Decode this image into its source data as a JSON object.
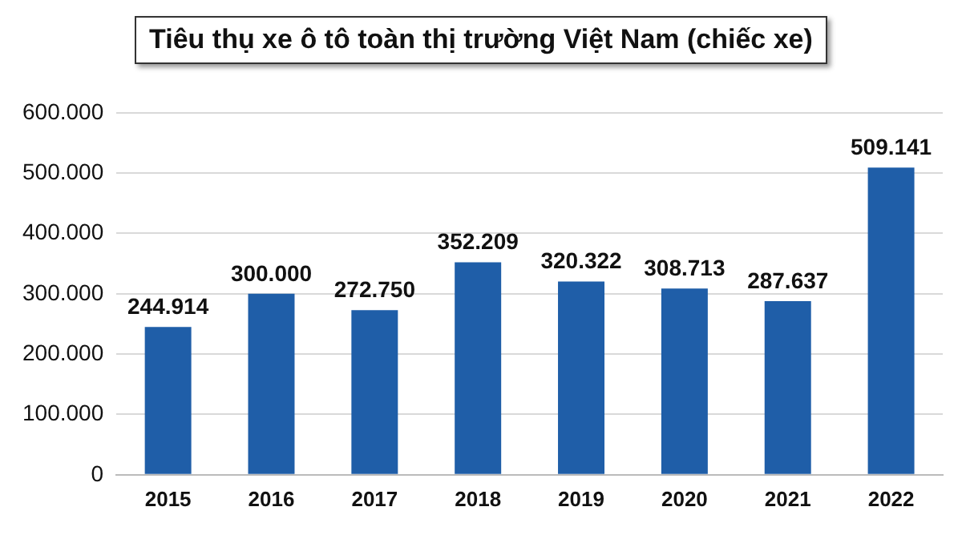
{
  "chart_data": {
    "type": "bar",
    "title": "Tiêu thụ xe ô tô toàn thị trường Việt Nam (chiếc xe)",
    "categories": [
      "2015",
      "2016",
      "2017",
      "2018",
      "2019",
      "2020",
      "2021",
      "2022"
    ],
    "values": [
      244914,
      300000,
      272750,
      352209,
      320322,
      308713,
      287637,
      509141
    ],
    "value_labels": [
      "244.914",
      "300.000",
      "272.750",
      "352.209",
      "320.322",
      "308.713",
      "287.637",
      "509.141"
    ],
    "color": "#1f5ea8",
    "ylim": [
      0,
      600000
    ],
    "yticks": [
      {
        "value": 0,
        "label": "0"
      },
      {
        "value": 100000,
        "label": "100.000"
      },
      {
        "value": 200000,
        "label": "200.000"
      },
      {
        "value": 300000,
        "label": "300.000"
      },
      {
        "value": 400000,
        "label": "400.000"
      },
      {
        "value": 500000,
        "label": "500.000"
      },
      {
        "value": 600000,
        "label": "600.000"
      }
    ],
    "grid": "y"
  }
}
